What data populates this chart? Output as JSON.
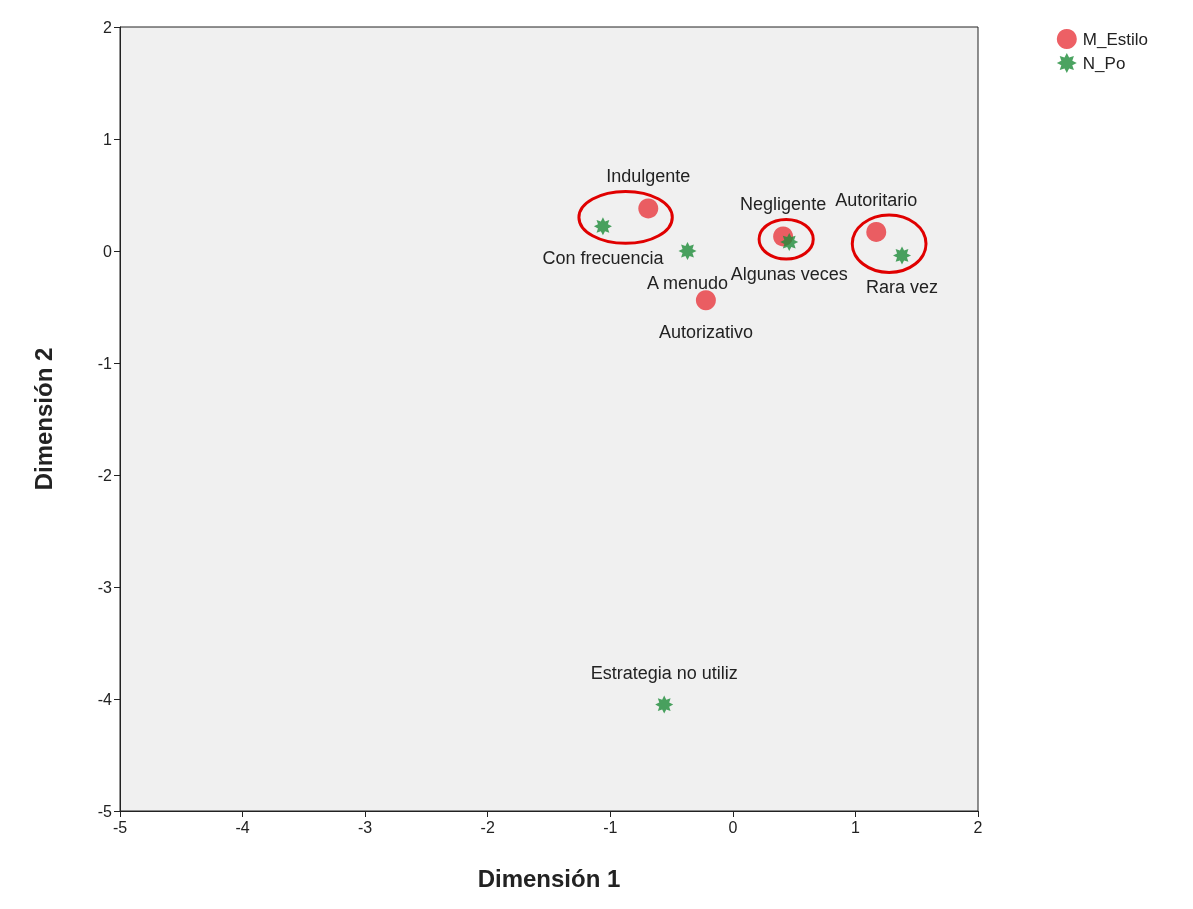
{
  "chart_data": {
    "type": "scatter",
    "xlabel": "Dimensión 1",
    "ylabel": "Dimensión 2",
    "xlim": [
      -5,
      2
    ],
    "xticks": [
      -5,
      -4,
      -3,
      -2,
      -1,
      0,
      1,
      2
    ],
    "ylim": [
      -5,
      2
    ],
    "yticks": [
      -5,
      -4,
      -3,
      -2,
      -1,
      0,
      1,
      2
    ],
    "grid": false,
    "legend": "top right",
    "series": [
      {
        "name": "M_Estilo",
        "color": "#e8383f",
        "marker": "circle",
        "x": [
          -0.69,
          0.41,
          1.17,
          -0.22
        ],
        "values": [
          0.38,
          0.13,
          0.17,
          -0.44
        ]
      },
      {
        "name": "N_Po",
        "color": "#1e8c3a",
        "marker": "star",
        "x": [
          -1.06,
          -0.37,
          0.46,
          1.38,
          -0.56
        ],
        "values": [
          0.22,
          0,
          0.08,
          -0.04,
          -4.05
        ]
      }
    ],
    "annotations": [
      {
        "text": "Indulgente",
        "x": -0.69,
        "y": 0.38
      },
      {
        "text": "Negligente",
        "x": 0.41,
        "y": 0.13
      },
      {
        "text": "Autoritario",
        "x": 1.17,
        "y": 0.17
      },
      {
        "text": "Autorizativo",
        "x": -0.22,
        "y": -0.44
      },
      {
        "text": "Con frecuencia",
        "x": -1.06,
        "y": 0.22
      },
      {
        "text": "A menudo",
        "x": -0.37,
        "y": 0
      },
      {
        "text": "Algunas veces",
        "x": 0.46,
        "y": 0.08
      },
      {
        "text": "Rara vez",
        "x": 1.38,
        "y": -0.04
      },
      {
        "text": "Estrategia no utiliz",
        "x": -0.56,
        "y": -4.05
      }
    ]
  }
}
